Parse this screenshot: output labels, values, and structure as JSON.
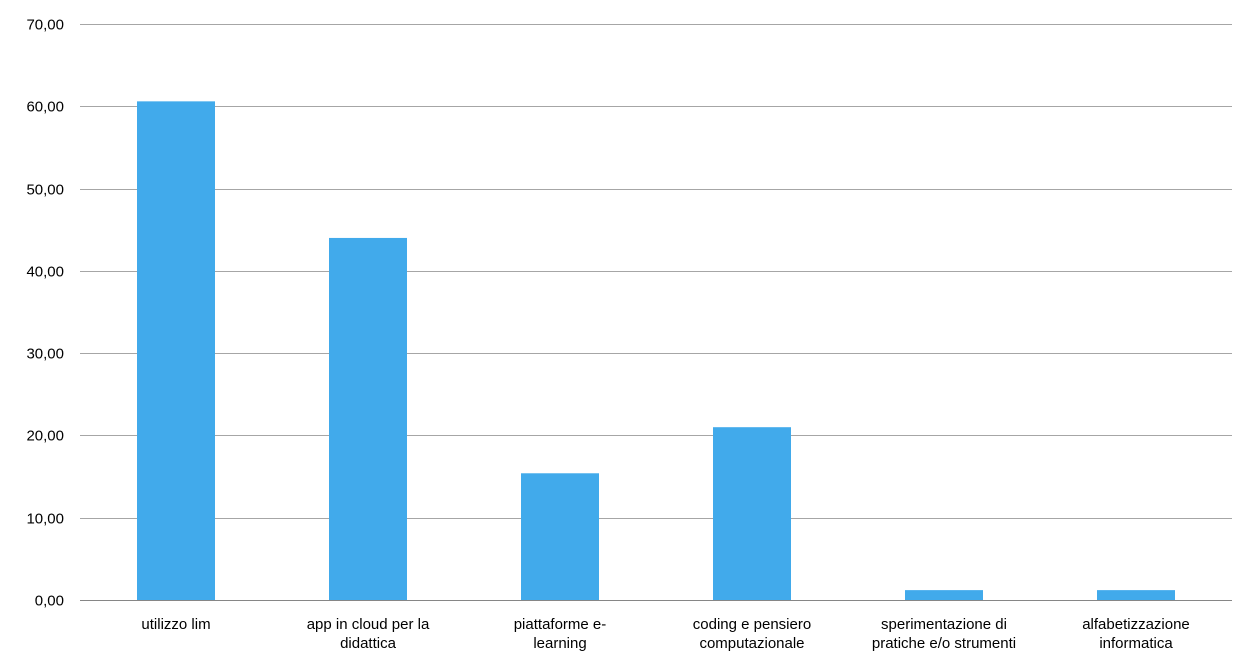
{
  "chart_data": {
    "type": "bar",
    "categories": [
      [
        "utilizzo lim"
      ],
      [
        "app in cloud per la",
        "didattica"
      ],
      [
        "piattaforme e-",
        "learning"
      ],
      [
        "coding e pensiero",
        "computazionale"
      ],
      [
        "sperimentazione di",
        "pratiche e/o strumenti"
      ],
      [
        "alfabetizzazione",
        "informatica"
      ]
    ],
    "values": [
      60.6,
      44.0,
      15.4,
      21.0,
      1.2,
      1.2
    ],
    "y_ticks": [
      "0,00",
      "10,00",
      "20,00",
      "30,00",
      "40,00",
      "50,00",
      "60,00",
      "70,00"
    ],
    "ylim": [
      0,
      70
    ],
    "grid": true,
    "colors": {
      "bar": "#41aaeb",
      "grid": "#a6a6a6",
      "axis": "#868686",
      "text": "#000000"
    }
  }
}
